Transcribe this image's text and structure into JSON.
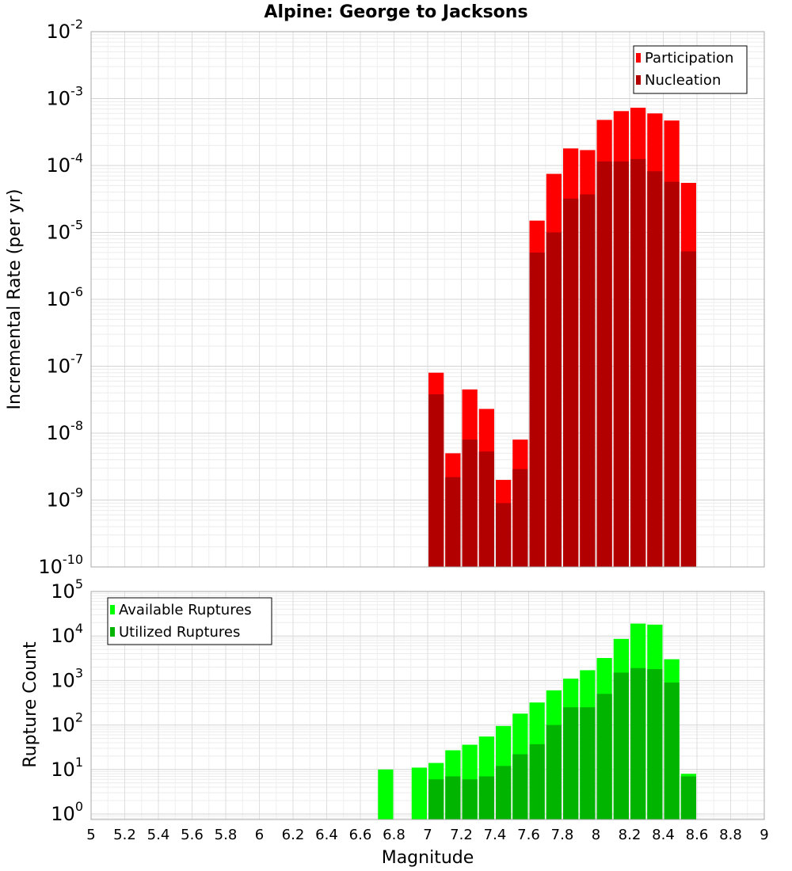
{
  "chart_data": [
    {
      "type": "bar",
      "title": "Alpine: George to Jacksons",
      "ylabel": "Incremental Rate (per yr)",
      "xlabel": "",
      "xlim": [
        5,
        9
      ],
      "ylim": [
        1e-10,
        0.01
      ],
      "yscale": "log",
      "y_tick_exponents": [
        -2,
        -3,
        -4,
        -5,
        -6,
        -7,
        -8,
        -9,
        -10
      ],
      "grid": true,
      "legend_position": "top-right",
      "bin_width": 0.1,
      "x": [
        7.05,
        7.15,
        7.25,
        7.35,
        7.45,
        7.55,
        7.65,
        7.75,
        7.85,
        7.95,
        8.05,
        8.15,
        8.25,
        8.35,
        8.45,
        8.55
      ],
      "series": [
        {
          "name": "Participation",
          "color": "#ff0000",
          "values": [
            8e-08,
            5e-09,
            4.5e-08,
            2.3e-08,
            2e-09,
            8e-09,
            1.5e-05,
            7.5e-05,
            0.00018,
            0.00017,
            0.00048,
            0.00065,
            0.00073,
            0.0006,
            0.00047,
            5.5e-05
          ]
        },
        {
          "name": "Nucleation",
          "color": "#b20000",
          "values": [
            3.8e-08,
            2.2e-09,
            8e-09,
            5.3e-09,
            9e-10,
            2.9e-09,
            5e-06,
            1e-05,
            3.2e-05,
            3.7e-05,
            0.000115,
            0.000115,
            0.000125,
            8.2e-05,
            5.7e-05,
            5.2e-06
          ]
        }
      ]
    },
    {
      "type": "bar",
      "title": "",
      "ylabel": "Rupture Count",
      "xlabel": "Magnitude",
      "xlim": [
        5,
        9
      ],
      "ylim": [
        0.75,
        100000.0
      ],
      "yscale": "log",
      "y_tick_exponents": [
        0,
        1,
        2,
        3,
        4,
        5
      ],
      "x_ticks": [
        "5",
        "5.2",
        "5.4",
        "5.6",
        "5.8",
        "6",
        "6.2",
        "6.4",
        "6.6",
        "6.8",
        "7",
        "7.2",
        "7.4",
        "7.6",
        "7.8",
        "8",
        "8.2",
        "8.4",
        "8.6",
        "8.8",
        "9"
      ],
      "grid": true,
      "legend_position": "top-left",
      "bin_width": 0.1,
      "x": [
        6.75,
        6.95,
        7.05,
        7.15,
        7.25,
        7.35,
        7.45,
        7.55,
        7.65,
        7.75,
        7.85,
        7.95,
        8.05,
        8.15,
        8.25,
        8.35,
        8.45,
        8.55
      ],
      "series": [
        {
          "name": "Available Ruptures",
          "color": "#00ff00",
          "values": [
            10,
            11,
            14,
            27,
            36,
            55,
            95,
            180,
            320,
            600,
            1100,
            1700,
            3200,
            8600,
            19000,
            18000,
            3000,
            8
          ]
        },
        {
          "name": "Utilized Ruptures",
          "color": "#00b400",
          "values": [
            0,
            0,
            6,
            7,
            6,
            7,
            12,
            22,
            37,
            100,
            250,
            250,
            500,
            1500,
            1900,
            1800,
            900,
            7
          ]
        }
      ]
    }
  ]
}
